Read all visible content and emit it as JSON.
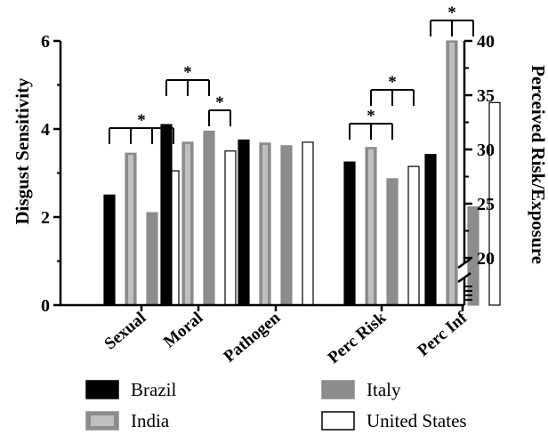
{
  "chart_data": {
    "type": "bar",
    "categories": [
      "Sexual",
      "Moral",
      "Pathogen",
      "Perc Risk",
      "Perc Inf"
    ],
    "series": [
      {
        "name": "Brazil",
        "values": [
          2.5,
          4.1,
          3.75,
          3.25,
          3.42
        ],
        "color": "#000000"
      },
      {
        "name": "India",
        "values": [
          3.45,
          3.7,
          3.68,
          3.58,
          6.0
        ],
        "color": "#8c8c8c",
        "inner_color": "#bfbfbf"
      },
      {
        "name": "Italy",
        "values": [
          2.1,
          3.95,
          3.62,
          2.87,
          2.23
        ],
        "color": "#8c8c8c"
      },
      {
        "name": "United States",
        "values": [
          3.05,
          3.5,
          3.7,
          3.15,
          4.6
        ],
        "color": "#ffffff"
      }
    ],
    "xlabel": "",
    "ylabel": "Disgust Sensitivity",
    "ylabel_right": "Perceived Risk/Exposure",
    "ylim": [
      0,
      6
    ],
    "yticks": [
      "0",
      "2",
      "4",
      "6"
    ],
    "y2lim": [
      20,
      40
    ],
    "y2ticks": [
      "20",
      "25",
      "30",
      "35",
      "40"
    ],
    "legend": {
      "position": "bottom",
      "entries": [
        "Brazil",
        "India",
        "Italy",
        "United States"
      ]
    },
    "significance_marker": "*",
    "grid": false
  }
}
